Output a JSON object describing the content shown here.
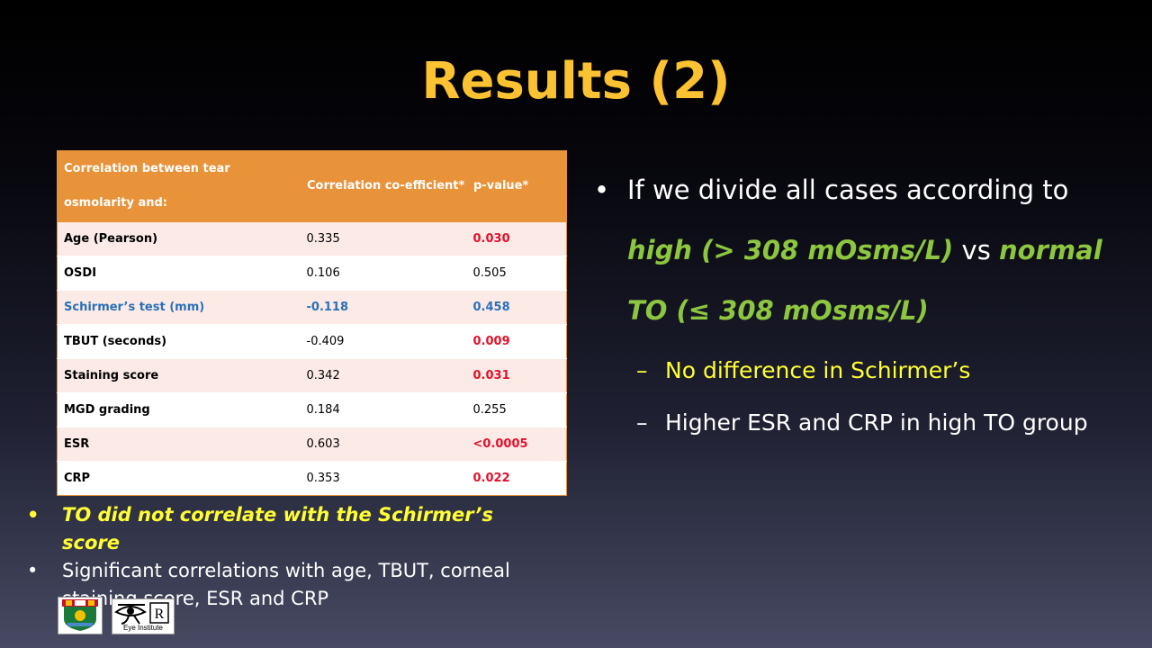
{
  "title": "Results (2)",
  "table": {
    "headers": [
      "Correlation between tear osmolarity and:",
      "Correlation co-efficient*",
      "p-value*"
    ],
    "rows": [
      {
        "label": "Age (Pearson)",
        "coef": "0.335",
        "p": "0.030"
      },
      {
        "label": "OSDI",
        "coef": "0.106",
        "p": "0.505"
      },
      {
        "label": "Schirmer’s test (mm)",
        "coef": "-0.118",
        "p": "0.458"
      },
      {
        "label": "TBUT (seconds)",
        "coef": "-0.409",
        "p": "0.009"
      },
      {
        "label": "Staining score",
        "coef": "0.342",
        "p": "0.031"
      },
      {
        "label": "MGD grading",
        "coef": "0.184",
        "p": "0.255"
      },
      {
        "label": "ESR",
        "coef": "0.603",
        "p": "<0.0005"
      },
      {
        "label": "CRP",
        "coef": "0.353",
        "p": "0.022"
      }
    ]
  },
  "left_bullets": [
    "TO did not correlate with the Schirmer’s score",
    "Significant correlations with age, TBUT, corneal staining score, ESR and CRP"
  ],
  "right": {
    "b1_pre": "If we divide all cases according to ",
    "b1_high": "high (> 308 mOsms/L)",
    "b1_vs": " vs ",
    "b1_normal": "normal TO (≤ 308 mOsms/L)",
    "sub1": "No difference in Schirmer’s",
    "sub2": "Higher ESR and CRP in high TO group"
  },
  "logo_text": "Eye Institute",
  "colors": {
    "title": "#fdc231",
    "table_header": "#e8923a",
    "significant": "#e3102c",
    "highlight_row": "#2b70b8",
    "green_text": "#8dc63f",
    "yellow_text": "#ffff33"
  },
  "bullet_icon": "bullet-dot",
  "dash_icon": "en-dash"
}
